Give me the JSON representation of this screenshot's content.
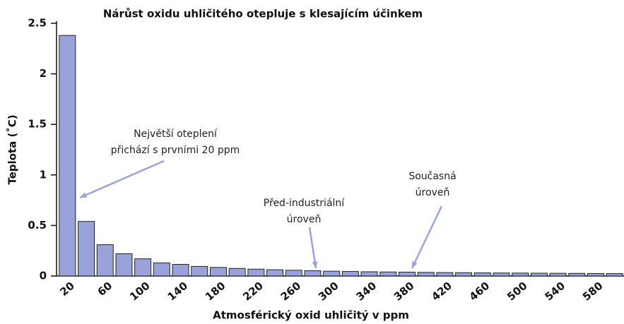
{
  "chart_data": {
    "type": "bar",
    "title": "Nárůst oxidu uhličitého otepluje s klesajícím účinkem",
    "xlabel": "Atmosférický oxid uhličitý v ppm",
    "ylabel": "Teplota (˚C)",
    "categories": [
      "20",
      null,
      "60",
      null,
      "100",
      null,
      "140",
      null,
      "180",
      null,
      "220",
      null,
      "260",
      null,
      "300",
      null,
      "340",
      null,
      "380",
      null,
      "420",
      null,
      "460",
      null,
      "500",
      null,
      "540",
      null,
      "580",
      null
    ],
    "values": [
      2.38,
      0.54,
      0.31,
      0.22,
      0.17,
      0.13,
      0.115,
      0.095,
      0.085,
      0.075,
      0.068,
      0.062,
      0.057,
      0.052,
      0.048,
      0.045,
      0.042,
      0.04,
      0.038,
      0.036,
      0.034,
      0.033,
      0.031,
      0.03,
      0.029,
      0.028,
      0.027,
      0.026,
      0.025,
      0.024
    ],
    "color": "#9aa3d9",
    "ylim": [
      0,
      2.5
    ],
    "yticks": [
      0,
      0.5,
      1,
      1.5,
      2,
      2.5
    ],
    "annotations": [
      {
        "lines": [
          "Největší oteplení",
          "přichází s prvními 20 ppm"
        ]
      },
      {
        "lines": [
          "Před-industriální",
          "úroveň"
        ]
      },
      {
        "lines": [
          "Současná",
          "úroveň"
        ]
      }
    ]
  }
}
